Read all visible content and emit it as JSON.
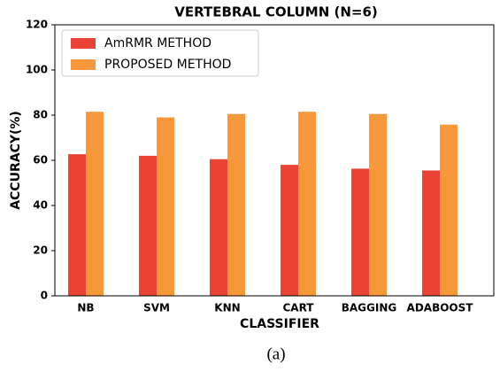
{
  "chart_data": {
    "type": "bar",
    "title": "VERTEBRAL COLUMN (N=6)",
    "x_label": "CLASSIFIER",
    "y_label": "ACCURACY(%)",
    "categories": [
      "NB",
      "SVM",
      "KNN",
      "CART",
      "BAGGING",
      "ADABOOST"
    ],
    "series": [
      {
        "name": "AmRMR METHOD",
        "color": "#ea4335",
        "values": [
          62.7,
          62,
          60.5,
          58,
          56.3,
          55.5
        ]
      },
      {
        "name": "PROPOSED METHOD",
        "color": "#f7993a",
        "values": [
          81.5,
          79,
          80.5,
          81.5,
          80.5,
          75.8
        ]
      }
    ],
    "ylim": [
      0,
      120
    ],
    "yticks": [
      0,
      20,
      40,
      60,
      80,
      100,
      120
    ],
    "grid": false,
    "legend": "upper left"
  },
  "caption": "(a)"
}
